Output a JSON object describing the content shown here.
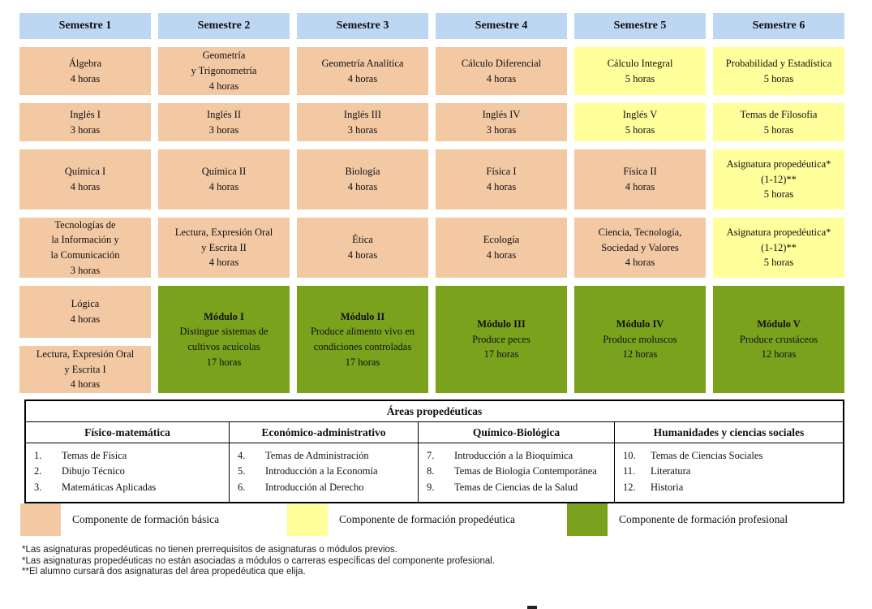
{
  "semesters": [
    "Semestre 1",
    "Semestre 2",
    "Semestre 3",
    "Semestre 4",
    "Semestre 5",
    "Semestre 6"
  ],
  "grid": {
    "row1": [
      {
        "title": "Álgebra",
        "hours": "4 horas",
        "component": "basica"
      },
      {
        "title": "Geometría\ny Trigonometría",
        "hours": "4 horas",
        "component": "basica"
      },
      {
        "title": "Geometría Analítica",
        "hours": "4 horas",
        "component": "basica"
      },
      {
        "title": "Cálculo Diferencial",
        "hours": "4 horas",
        "component": "basica"
      },
      {
        "title": "Cálculo Integral",
        "hours": "5 horas",
        "component": "propedeutica"
      },
      {
        "title": "Probabilidad y Estadística",
        "hours": "5 horas",
        "component": "propedeutica"
      }
    ],
    "row2": [
      {
        "title": "Inglés I",
        "hours": "3 horas",
        "component": "basica"
      },
      {
        "title": "Inglés II",
        "hours": "3 horas",
        "component": "basica"
      },
      {
        "title": "Inglés III",
        "hours": "3 horas",
        "component": "basica"
      },
      {
        "title": "Inglés IV",
        "hours": "3 horas",
        "component": "basica"
      },
      {
        "title": "Inglés V",
        "hours": "5 horas",
        "component": "propedeutica"
      },
      {
        "title": "Temas de Filosofia",
        "hours": "5 horas",
        "component": "propedeutica"
      }
    ],
    "row3": [
      {
        "title": "Química I",
        "hours": "4 horas",
        "component": "basica"
      },
      {
        "title": "Química II",
        "hours": "4 horas",
        "component": "basica"
      },
      {
        "title": "Biología",
        "hours": "4 horas",
        "component": "basica"
      },
      {
        "title": "Física I",
        "hours": "4 horas",
        "component": "basica"
      },
      {
        "title": "Física II",
        "hours": "4 horas",
        "component": "basica"
      },
      {
        "title": "Asignatura propedéutica*\n(1-12)**",
        "hours": "5 horas",
        "component": "propedeutica"
      }
    ],
    "row4": [
      {
        "title": "Tecnologías de\nla Información y\nla Comunicación",
        "hours": "3 horas",
        "component": "basica"
      },
      {
        "title": "Lectura, Expresión Oral\ny Escrita II",
        "hours": "4 horas",
        "component": "basica"
      },
      {
        "title": "Ética",
        "hours": "4 horas",
        "component": "basica"
      },
      {
        "title": "Ecología",
        "hours": "4 horas",
        "component": "basica"
      },
      {
        "title": "Ciencia, Tecnología,\nSociedad y Valores",
        "hours": "4 horas",
        "component": "basica"
      },
      {
        "title": "Asignatura propedéutica*\n(1-12)**",
        "hours": "5 horas",
        "component": "propedeutica"
      }
    ],
    "row5_sem1": [
      {
        "title": "Lógica",
        "hours": "4 horas",
        "component": "basica"
      },
      {
        "title": "Lectura, Expresión Oral\ny Escrita I",
        "hours": "4 horas",
        "component": "basica"
      }
    ],
    "modules": [
      {
        "name": "Módulo I",
        "desc": "Distingue sistemas de\ncultivos acuícolas",
        "hours": "17 horas",
        "component": "profesional"
      },
      {
        "name": "Módulo II",
        "desc": "Produce alimento vivo en\ncondiciones controladas",
        "hours": "17 horas",
        "component": "profesional"
      },
      {
        "name": "Módulo III",
        "desc": "Produce peces",
        "hours": "17 horas",
        "component": "profesional"
      },
      {
        "name": "Módulo IV",
        "desc": "Produce moluscos",
        "hours": "12 horas",
        "component": "profesional"
      },
      {
        "name": "Módulo V",
        "desc": "Produce crustáceos",
        "hours": "12 horas",
        "component": "profesional"
      }
    ]
  },
  "areas_table": {
    "title": "Áreas propedéuticas",
    "columns": [
      {
        "header": "Físico-matemática",
        "items": [
          {
            "num": "1.",
            "label": "Temas de Física"
          },
          {
            "num": "2.",
            "label": "Dibujo Técnico"
          },
          {
            "num": "3.",
            "label": "Matemáticas Aplicadas"
          }
        ]
      },
      {
        "header": "Económico-administrativo",
        "items": [
          {
            "num": "4.",
            "label": "Temas de Administración"
          },
          {
            "num": "5.",
            "label": "Introducción a la Economía"
          },
          {
            "num": "6.",
            "label": "Introducción al Derecho"
          }
        ]
      },
      {
        "header": "Químico-Biológica",
        "items": [
          {
            "num": "7.",
            "label": "Introducción a la Bioquímica"
          },
          {
            "num": "8.",
            "label": "Temas de Biología Contemporánea"
          },
          {
            "num": "9.",
            "label": "Temas de Ciencias de la Salud"
          }
        ]
      },
      {
        "header": "Humanidades y ciencias sociales",
        "items": [
          {
            "num": "10.",
            "label": "Temas de Ciencias Sociales"
          },
          {
            "num": "11.",
            "label": "Literatura"
          },
          {
            "num": "12.",
            "label": "Historia"
          }
        ]
      }
    ]
  },
  "legend": {
    "items": [
      {
        "label": "Componente de formación básica",
        "color": "#F2C9A3"
      },
      {
        "label": "Componente de formación propedéutica",
        "color": "#FFFF9B"
      },
      {
        "label": "Componente de formación profesional",
        "color": "#7BA21C"
      }
    ]
  },
  "footnotes": [
    "*Las asignaturas propedéuticas no tienen prerrequisitos de asignaturas o módulos previos.",
    "*Las asignaturas propedéuticas no están asociadas a módulos o carreras específicas del componente profesional.",
    "**El alumno cursará dos asignaturas del área propedéutica que elija."
  ],
  "colors": {
    "header_blue": "#BDD7F2",
    "basica": "#F2C9A3",
    "propedeutica": "#FFFF9B",
    "profesional": "#7BA21C"
  }
}
